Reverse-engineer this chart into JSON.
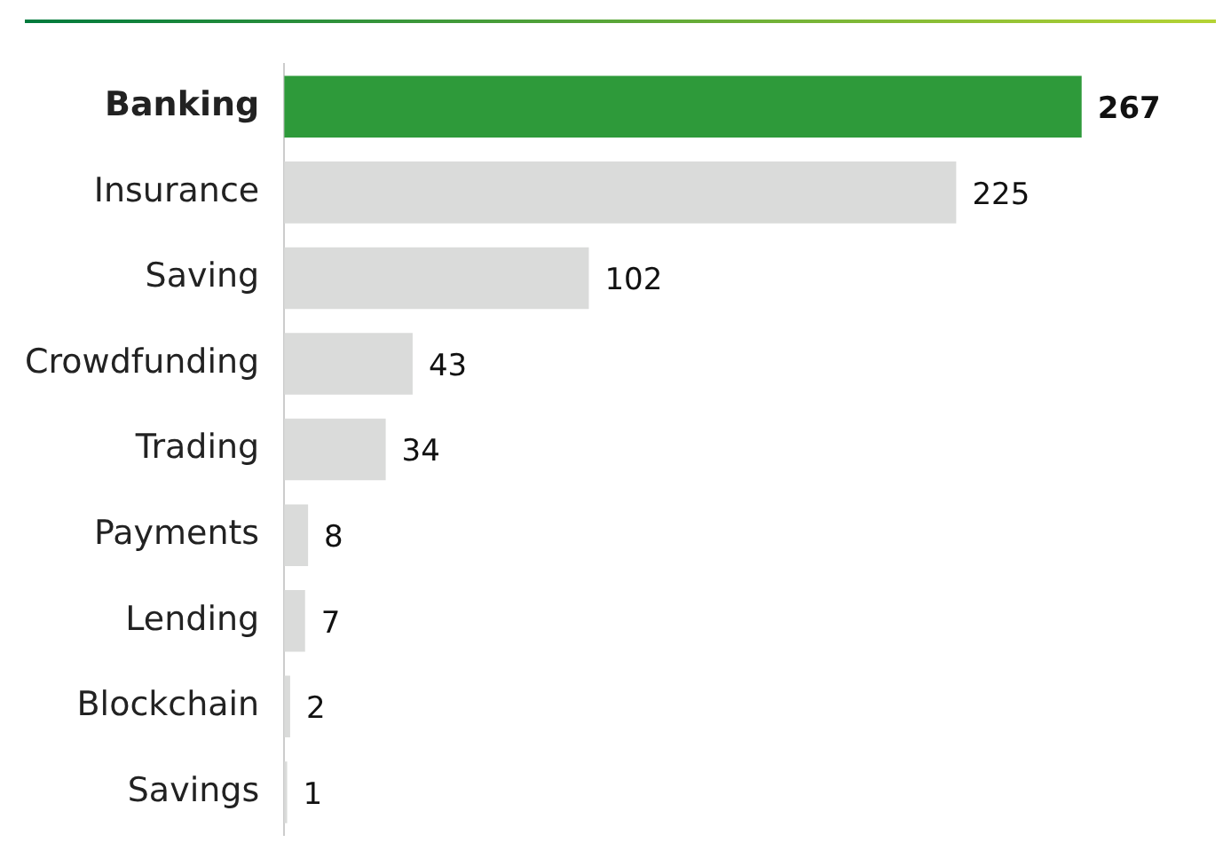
{
  "chart_data": {
    "type": "bar",
    "orientation": "horizontal",
    "categories": [
      "Banking",
      "Insurance",
      "Saving",
      "Crowdfunding",
      "Trading",
      "Payments",
      "Lending",
      "Blockchain",
      "Savings"
    ],
    "values": [
      267,
      225,
      102,
      43,
      34,
      8,
      7,
      2,
      1
    ],
    "colors": [
      "#2e9a3a",
      "#dadbda",
      "#dadbda",
      "#dadbda",
      "#dadbda",
      "#dadbda",
      "#dadbda",
      "#dadbda",
      "#dadbda"
    ],
    "data_labels": true,
    "grid": false,
    "legend": false
  }
}
